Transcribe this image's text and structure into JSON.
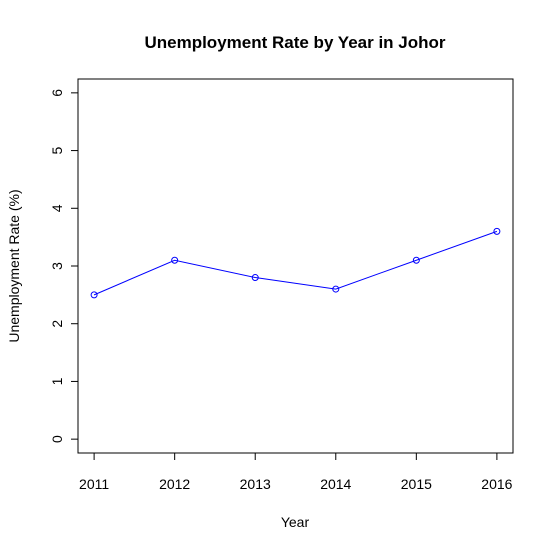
{
  "chart_data": {
    "type": "line",
    "title": "Unemployment Rate by Year in Johor",
    "xlabel": "Year",
    "ylabel": "Unemployment Rate (%)",
    "x": [
      2011,
      2012,
      2013,
      2014,
      2015,
      2016
    ],
    "xticks": [
      "2011",
      "2012",
      "2013",
      "2014",
      "2015",
      "2016"
    ],
    "yticks": [
      "0",
      "1",
      "2",
      "3",
      "4",
      "5",
      "6"
    ],
    "ylim": [
      0,
      6
    ],
    "series": [
      {
        "values": [
          2.5,
          3.1,
          2.8,
          2.6,
          3.1,
          3.6
        ],
        "color": "#0000ff",
        "marker": "open-circle"
      }
    ],
    "grid": false,
    "legend": "none"
  }
}
